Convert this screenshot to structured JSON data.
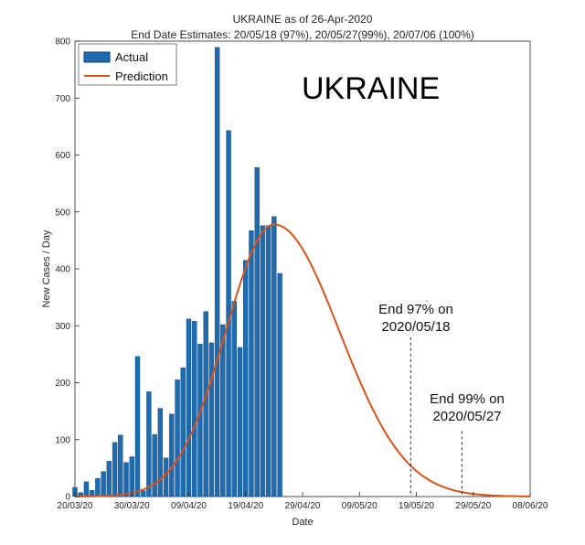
{
  "chart_data": {
    "type": "bar",
    "title": "UKRAINE as of 26-Apr-2020",
    "subtitle": "End Date Estimates: 20/05/18 (97%), 20/05/27(99%), 20/07/06 (100%)",
    "xlabel": "Date",
    "ylabel": "New Cases / Day",
    "big_label": "UKRAINE",
    "x_ticks": [
      "20/03/20",
      "30/03/20",
      "09/04/20",
      "19/04/20",
      "29/04/20",
      "09/05/20",
      "19/05/20",
      "29/05/20",
      "08/06/20"
    ],
    "xlim": [
      "2020-03-20",
      "2020-06-08"
    ],
    "ylim": [
      0,
      800
    ],
    "y_ticks": [
      0,
      100,
      200,
      300,
      400,
      500,
      600,
      700,
      800
    ],
    "grid": false,
    "legend_position": "top-left",
    "series": [
      {
        "name": "Actual",
        "kind": "bar",
        "color": "#1f6bb0",
        "x": [
          "2020-03-20",
          "2020-03-21",
          "2020-03-22",
          "2020-03-23",
          "2020-03-24",
          "2020-03-25",
          "2020-03-26",
          "2020-03-27",
          "2020-03-28",
          "2020-03-29",
          "2020-03-30",
          "2020-03-31",
          "2020-04-01",
          "2020-04-02",
          "2020-04-03",
          "2020-04-04",
          "2020-04-05",
          "2020-04-06",
          "2020-04-07",
          "2020-04-08",
          "2020-04-09",
          "2020-04-10",
          "2020-04-11",
          "2020-04-12",
          "2020-04-13",
          "2020-04-14",
          "2020-04-15",
          "2020-04-16",
          "2020-04-17",
          "2020-04-18",
          "2020-04-19",
          "2020-04-20",
          "2020-04-21",
          "2020-04-22",
          "2020-04-23",
          "2020-04-24",
          "2020-04-25",
          "2020-04-26"
        ],
        "values": [
          16,
          7,
          26,
          11,
          32,
          44,
          62,
          95,
          108,
          60,
          70,
          246,
          10,
          184,
          109,
          155,
          68,
          145,
          205,
          226,
          312,
          308,
          268,
          325,
          270,
          789,
          302,
          643,
          343,
          262,
          415,
          467,
          578,
          476,
          476,
          492,
          392,
          0
        ]
      },
      {
        "name": "Prediction",
        "kind": "line",
        "color": "#d95319",
        "peak_date": "2020-04-24",
        "peak_value": 478,
        "rise_days": 8.5,
        "fall_days": 11.5
      }
    ],
    "annotations": [
      {
        "line1": "End 97% on",
        "line2": "2020/05/18",
        "date": "2020-05-18",
        "y_top": 280
      },
      {
        "line1": "End 99% on",
        "line2": "2020/05/27",
        "date": "2020-05-27",
        "y_top": 115
      }
    ]
  }
}
